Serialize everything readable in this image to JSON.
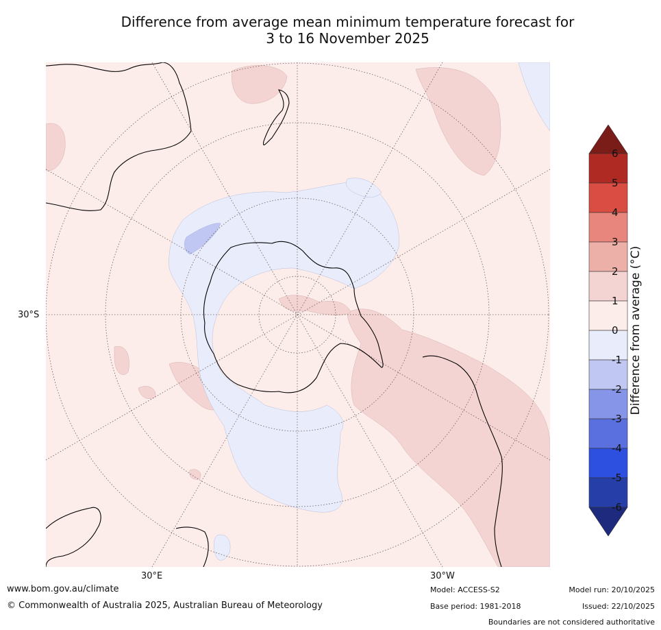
{
  "title": {
    "line1": "Difference from average mean minimum temperature forecast for",
    "line2": "3 to 16 November 2025"
  },
  "map": {
    "projection": "south polar stereographic",
    "grid_labels": {
      "lat": "30°S",
      "lon_left": "30°E",
      "lon_right": "30°W"
    },
    "regions": {
      "ocean_default": "0 to 1",
      "antarctic_coastal_ring": "-1 to 0",
      "south_america_south_atlantic": "1 to 2",
      "tasman_sea": "1 to 2",
      "east_pacific": "1 to 2"
    }
  },
  "colorbar": {
    "label": "Difference from average (°C)",
    "ticks": [
      "6",
      "5",
      "4",
      "3",
      "2",
      "1",
      "0",
      "-1",
      "-2",
      "-3",
      "-4",
      "-5",
      "-6"
    ],
    "colors": {
      "above_6": "#7a1c18",
      "5_to_6": "#ae2a22",
      "4_to_5": "#d94d43",
      "3_to_4": "#e8867e",
      "2_to_3": "#edb0a9",
      "1_to_2": "#f4d4d2",
      "0_to_1": "#fcecea",
      "-1_to_0": "#e8ecfb",
      "-2_to_-1": "#c0c7f3",
      "-3_to_-2": "#8695e8",
      "-4_to_-3": "#5b70df",
      "-5_to_-4": "#2e50e0",
      "-6_to_-5": "#263fa8",
      "below_-6": "#1e2a7e"
    }
  },
  "footer": {
    "website": "www.bom.gov.au/climate",
    "copyright": "© Commonwealth of Australia 2025, Australian Bureau of Meteorology",
    "model": "Model: ACCESS-S2",
    "base_period": "Base period: 1981-2018",
    "model_run": "Model run: 20/10/2025",
    "issued": "Issued: 22/10/2025",
    "disclaimer": "Boundaries are not considered authoritative"
  }
}
